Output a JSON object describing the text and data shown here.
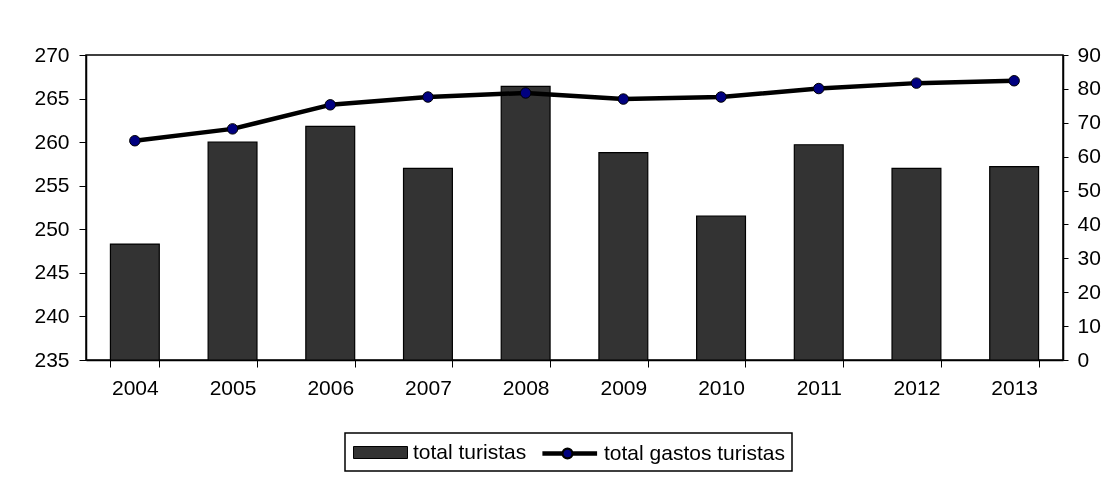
{
  "chart_data": {
    "type": "bar",
    "categories": [
      "2004",
      "2005",
      "2006",
      "2007",
      "2008",
      "2009",
      "2010",
      "2011",
      "2012",
      "2013"
    ],
    "series": [
      {
        "name": "total turistas",
        "color": "#333333",
        "values": [
          248.3,
          260.0,
          261.8,
          257.0,
          266.4,
          258.8,
          251.5,
          259.7,
          257.0,
          257.2
        ]
      },
      {
        "name": "total gastos turistas",
        "type": "line",
        "axis": "y2",
        "color": "#000000",
        "colors": [
          "#000080",
          "#000080",
          "#000080",
          "#000080",
          "#000080",
          "#000080",
          "#000080",
          "#000080",
          "#000080",
          "#000080"
        ],
        "values": [
          64.7,
          68.2,
          75.3,
          77.6,
          78.8,
          77.0,
          77.6,
          80.1,
          81.7,
          82.4
        ]
      }
    ],
    "ylim": [
      235,
      270
    ],
    "yticks": [
      235,
      240,
      245,
      250,
      255,
      260,
      265,
      270
    ],
    "y2lim": [
      0,
      90
    ],
    "y2ticks": [
      0,
      10,
      20,
      30,
      40,
      50,
      60,
      70,
      80,
      90
    ],
    "legend": "bottom",
    "grid": false,
    "marker": "circle",
    "line_style": "solid"
  }
}
